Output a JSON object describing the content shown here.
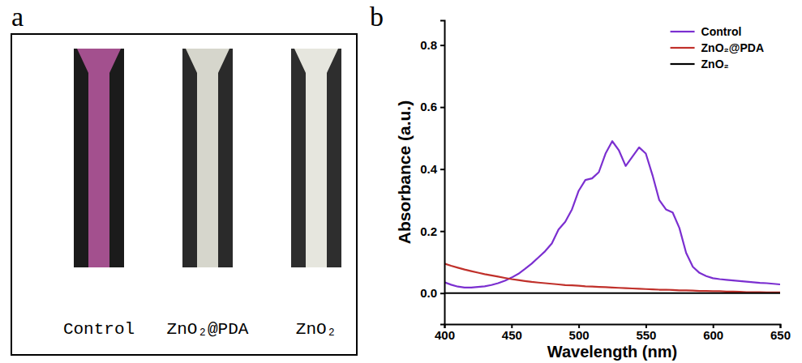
{
  "panel_a": {
    "letter": "a",
    "labels": [
      "Control",
      "ZnO₂@PDA",
      "ZnO₂"
    ],
    "colors": [
      "#a3508e",
      "#d6d6cc",
      "#e6e6de"
    ]
  },
  "panel_b": {
    "letter": "b"
  },
  "chart_data": {
    "type": "line",
    "x_label": "Wavelength (nm)",
    "y_label": "Absorbance (a.u.)",
    "x": [
      400,
      405,
      410,
      415,
      420,
      425,
      430,
      435,
      440,
      445,
      450,
      455,
      460,
      465,
      470,
      475,
      480,
      485,
      490,
      495,
      500,
      505,
      510,
      515,
      520,
      525,
      530,
      535,
      540,
      545,
      550,
      555,
      560,
      565,
      570,
      575,
      580,
      585,
      590,
      595,
      600,
      605,
      610,
      615,
      620,
      625,
      630,
      635,
      640,
      645,
      650
    ],
    "xlim": [
      400,
      650
    ],
    "xticks": [
      400,
      450,
      500,
      550,
      600,
      650
    ],
    "ylim": [
      -0.1,
      0.88
    ],
    "yticks": [
      {
        "value": 0,
        "label": "0.0"
      },
      0.2,
      0.4,
      0.6,
      0.8
    ],
    "legend": "top-right",
    "series": [
      {
        "name": "Control",
        "color": "#7b2fd0",
        "values": [
          0.035,
          0.027,
          0.021,
          0.018,
          0.018,
          0.02,
          0.022,
          0.026,
          0.032,
          0.04,
          0.05,
          0.062,
          0.078,
          0.095,
          0.115,
          0.135,
          0.16,
          0.205,
          0.23,
          0.27,
          0.33,
          0.365,
          0.37,
          0.39,
          0.45,
          0.49,
          0.46,
          0.41,
          0.44,
          0.47,
          0.45,
          0.38,
          0.3,
          0.27,
          0.26,
          0.21,
          0.13,
          0.085,
          0.065,
          0.055,
          0.048,
          0.045,
          0.043,
          0.041,
          0.039,
          0.037,
          0.035,
          0.033,
          0.032,
          0.03,
          0.028
        ]
      },
      {
        "name": "ZnO₂@PDA",
        "color": "#c0302a",
        "values": [
          0.095,
          0.088,
          0.082,
          0.076,
          0.071,
          0.066,
          0.061,
          0.057,
          0.053,
          0.049,
          0.045,
          0.042,
          0.039,
          0.036,
          0.034,
          0.032,
          0.03,
          0.028,
          0.026,
          0.025,
          0.024,
          0.022,
          0.021,
          0.02,
          0.019,
          0.018,
          0.017,
          0.016,
          0.015,
          0.014,
          0.013,
          0.012,
          0.011,
          0.011,
          0.01,
          0.009,
          0.009,
          0.008,
          0.007,
          0.007,
          0.006,
          0.006,
          0.005,
          0.005,
          0.004,
          0.003,
          0.003,
          0.003,
          0.002,
          0.002,
          0.002
        ]
      },
      {
        "name": "ZnO₂",
        "color": "#000000",
        "values": [
          0,
          0,
          0,
          0,
          0,
          0,
          0,
          0,
          0,
          0,
          0,
          0,
          0,
          0,
          0,
          0,
          0,
          0,
          0,
          0,
          0,
          0,
          0,
          0,
          0,
          0,
          0,
          0,
          0,
          0,
          0,
          0,
          0,
          0,
          0,
          0,
          0,
          0,
          0,
          0,
          0,
          0,
          0,
          0,
          0,
          0,
          0,
          0,
          0,
          0,
          0
        ]
      }
    ]
  }
}
